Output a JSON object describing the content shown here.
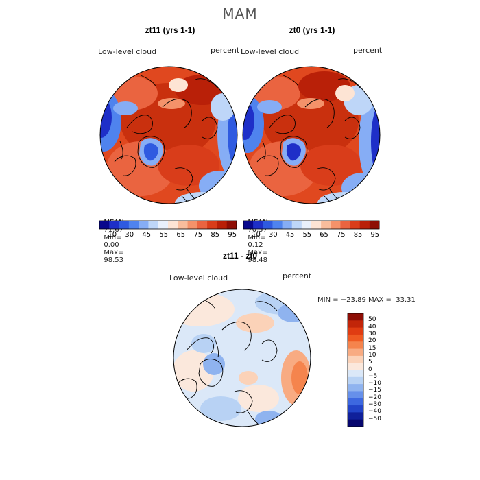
{
  "figure": {
    "season": "MAM"
  },
  "panels": [
    {
      "title": "zt11 (yrs 1-1)",
      "variable": "Low-level cloud",
      "units": "percent",
      "stats": {
        "mean_label": "MEAN=",
        "mean": "71.67",
        "min_label": "Min=",
        "min": "0.00",
        "max_label": "Max=",
        "max": "98.53"
      }
    },
    {
      "title": "zt0 (yrs 1-1)",
      "variable": "Low-level cloud",
      "units": "percent",
      "stats": {
        "mean_label": "MEAN=",
        "mean": "70.57",
        "min_label": "Min=",
        "min": "0.12",
        "max_label": "Max=",
        "max": "98.48"
      }
    }
  ],
  "diff": {
    "title": "zt11 - zt0",
    "variable": "Low-level cloud",
    "units": "percent",
    "range_text": "MIN = −23.89 MAX =  33.31"
  },
  "colorbar_main": {
    "ticks": [
      "10",
      "30",
      "45",
      "55",
      "65",
      "75",
      "85",
      "95"
    ],
    "colors": [
      "#08088c",
      "#1e2fc8",
      "#2f5ae0",
      "#4f83ee",
      "#86adf5",
      "#bed6f8",
      "#e9f0fb",
      "#fde4d4",
      "#f9bd9c",
      "#f4926a",
      "#ea6440",
      "#d93d1a",
      "#b92008",
      "#8e0e05"
    ]
  },
  "colorbar_diff": {
    "labels": [
      "50",
      "40",
      "30",
      "20",
      "15",
      "10",
      "5",
      "0",
      "−5",
      "−10",
      "−15",
      "−20",
      "−30",
      "−40",
      "−50"
    ],
    "colors": [
      "#8e0e05",
      "#c22509",
      "#e03c12",
      "#ef5a22",
      "#f5844d",
      "#f8ab82",
      "#fbd2b8",
      "#fbe8dc",
      "#dbe8f8",
      "#b8d2f4",
      "#8fb3ef",
      "#6690ea",
      "#3d68e0",
      "#2244c8",
      "#10209a",
      "#06066e"
    ]
  },
  "chart_data": [
    {
      "type": "heatmap",
      "title": "zt11 (yrs 1-1)",
      "subtitle": "Low-level cloud",
      "units": "percent",
      "projection": "north polar stereographic",
      "mean": 71.67,
      "min": 0.0,
      "max": 98.53,
      "levels": [
        10,
        30,
        45,
        55,
        65,
        75,
        85,
        95
      ]
    },
    {
      "type": "heatmap",
      "title": "zt0 (yrs 1-1)",
      "subtitle": "Low-level cloud",
      "units": "percent",
      "projection": "north polar stereographic",
      "mean": 70.57,
      "min": 0.12,
      "max": 98.48,
      "levels": [
        10,
        30,
        45,
        55,
        65,
        75,
        85,
        95
      ]
    },
    {
      "type": "heatmap",
      "title": "zt11 - zt0",
      "subtitle": "Low-level cloud",
      "units": "percent",
      "projection": "north polar stereographic",
      "min": -23.89,
      "max": 33.31,
      "levels": [
        -50,
        -40,
        -30,
        -20,
        -15,
        -10,
        -5,
        0,
        5,
        10,
        15,
        20,
        30,
        40,
        50
      ]
    }
  ]
}
